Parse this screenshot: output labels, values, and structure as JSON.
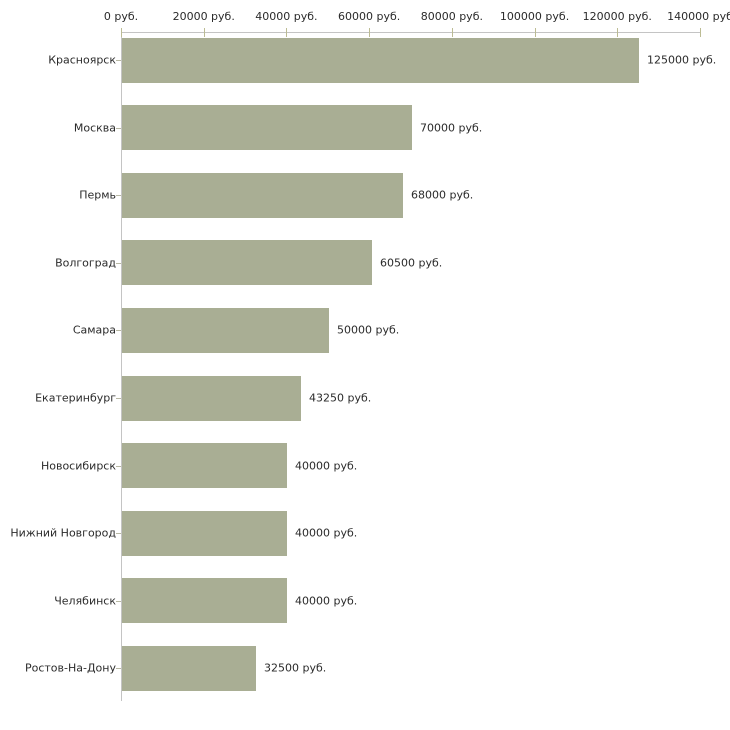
{
  "chart_data": {
    "type": "bar",
    "orientation": "horizontal",
    "title": "",
    "categories": [
      "Красноярск",
      "Москва",
      "Пермь",
      "Волгоград",
      "Самара",
      "Екатеринбург",
      "Новосибирск",
      "Нижний Новгород",
      "Челябинск",
      "Ростов-На-Дону"
    ],
    "values": [
      125000,
      70000,
      68000,
      60500,
      50000,
      43250,
      40000,
      40000,
      40000,
      32500
    ],
    "value_labels": [
      "125000 руб.",
      "70000 руб.",
      "68000 руб.",
      "60500 руб.",
      "50000 руб.",
      "43250 руб.",
      "40000 руб.",
      "40000 руб.",
      "40000 руб.",
      "32500 руб."
    ],
    "x_axis": {
      "unit": "руб.",
      "min": 0,
      "max": 140000,
      "tick_step": 20000,
      "tick_values": [
        0,
        20000,
        40000,
        60000,
        80000,
        100000,
        120000,
        140000
      ],
      "tick_labels": [
        "0 руб.",
        "20000 руб.",
        "40000 руб.",
        "60000 руб.",
        "80000 руб.",
        "100000 руб.",
        "120000 руб.",
        "140000 руб"
      ]
    },
    "grid": false,
    "legend": "none",
    "colors": {
      "bar": "#a9ae94",
      "axis_line": "#c4c4c4",
      "x_tick_mark": "#bcbc94",
      "y_tick_mark": "#b8b8a4",
      "text": "#2b2b2b"
    }
  }
}
